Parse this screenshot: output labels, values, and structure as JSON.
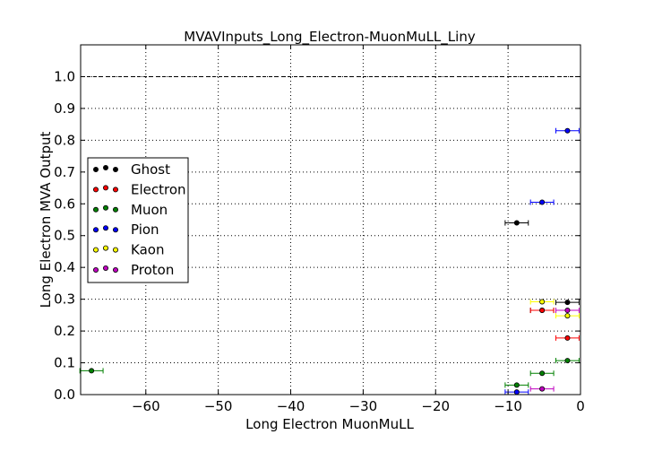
{
  "chart_data": {
    "type": "scatter",
    "title": "MVAVInputs_Long_Electron-MuonMuLL_Liny",
    "xlabel": "Long Electron MuonMuLL",
    "ylabel": "Long Electron MVA Output",
    "xlim": [
      -69,
      0
    ],
    "ylim": [
      0,
      1.1
    ],
    "xticks": [
      -60,
      -50,
      -40,
      -30,
      -20,
      -10,
      0
    ],
    "xtick_labels": [
      "−60",
      "−50",
      "−40",
      "−30",
      "−20",
      "−10",
      "0"
    ],
    "yticks": [
      0.0,
      0.1,
      0.2,
      0.3,
      0.4,
      0.5,
      0.6,
      0.7,
      0.8,
      0.9,
      1.0
    ],
    "ytick_labels": [
      "0.0",
      "0.1",
      "0.2",
      "0.3",
      "0.4",
      "0.5",
      "0.6",
      "0.7",
      "0.8",
      "0.9",
      "1.0"
    ],
    "reference_line": 1.0,
    "grid": true,
    "legend_position": "center-left",
    "series": [
      {
        "name": "Ghost",
        "color": "#000000",
        "points": [
          {
            "x": -8.8,
            "y": 0.54,
            "xerr": 1.6
          },
          {
            "x": -1.8,
            "y": 0.29,
            "xerr": 1.6
          },
          {
            "x": -5.3,
            "y": 0.265,
            "xerr": 1.6
          }
        ]
      },
      {
        "name": "Electron",
        "color": "#ff0000",
        "points": [
          {
            "x": -1.8,
            "y": 0.178,
            "xerr": 1.6
          },
          {
            "x": -5.3,
            "y": 0.265,
            "xerr": 1.6
          }
        ]
      },
      {
        "name": "Muon",
        "color": "#008000",
        "points": [
          {
            "x": -67.5,
            "y": 0.075,
            "xerr": 1.6
          },
          {
            "x": -8.8,
            "y": 0.03,
            "xerr": 1.6
          },
          {
            "x": -5.3,
            "y": 0.067,
            "xerr": 1.6
          },
          {
            "x": -1.8,
            "y": 0.107,
            "xerr": 1.6
          }
        ]
      },
      {
        "name": "Pion",
        "color": "#0000ff",
        "points": [
          {
            "x": -1.8,
            "y": 0.83,
            "xerr": 1.6
          },
          {
            "x": -5.3,
            "y": 0.605,
            "xerr": 1.6
          },
          {
            "x": -8.8,
            "y": 0.008,
            "xerr": 1.6
          }
        ]
      },
      {
        "name": "Kaon",
        "color": "#ffff00",
        "points": [
          {
            "x": -5.3,
            "y": 0.292,
            "xerr": 1.6
          },
          {
            "x": -1.8,
            "y": 0.248,
            "xerr": 1.6
          }
        ]
      },
      {
        "name": "Proton",
        "color": "#bf00bf",
        "points": [
          {
            "x": -5.3,
            "y": 0.018,
            "xerr": 1.6
          },
          {
            "x": -1.8,
            "y": 0.265,
            "xerr": 1.6
          }
        ]
      }
    ]
  }
}
